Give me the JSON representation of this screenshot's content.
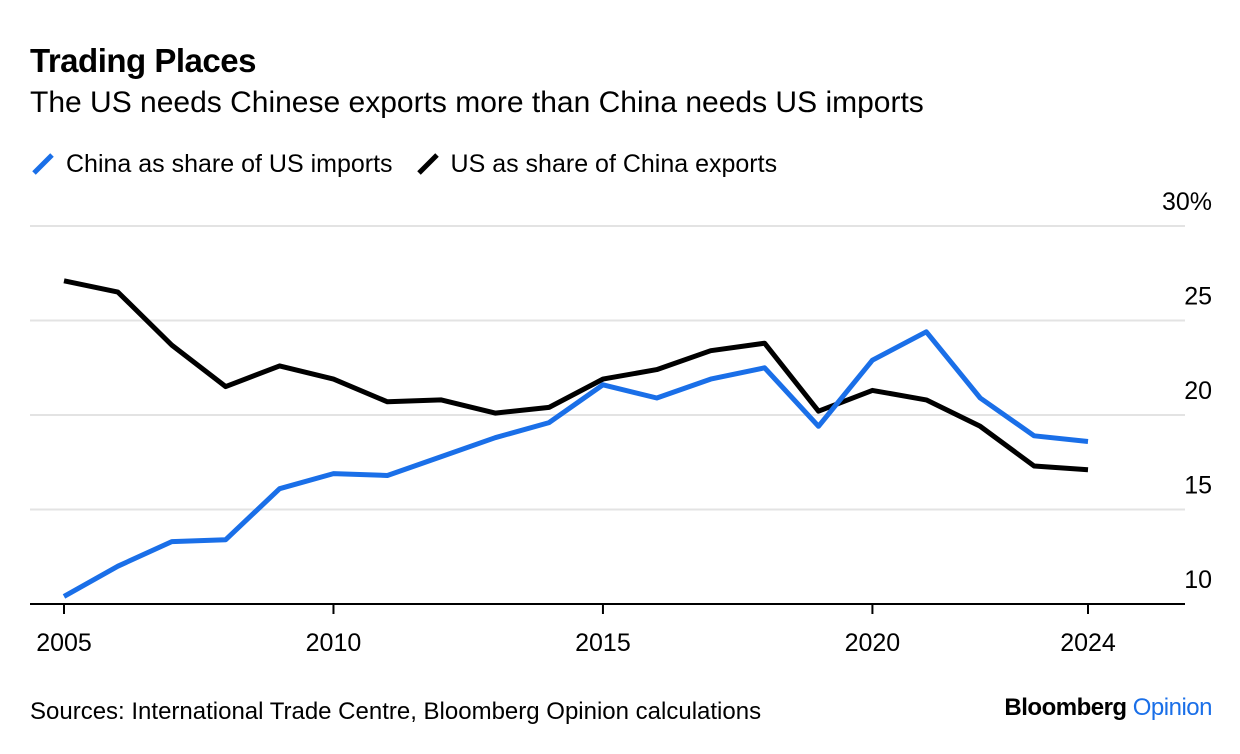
{
  "title": "Trading Places",
  "subtitle": "The US needs Chinese exports more than China needs US imports",
  "source": "Sources: International Trade Centre, Bloomberg Opinion calculations",
  "brand": {
    "name": "Bloomberg",
    "suffix": "Opinion"
  },
  "chart_data": {
    "type": "line",
    "title": "Trading Places",
    "subtitle": "The US needs Chinese exports more than China needs US imports",
    "x": [
      2005,
      2006,
      2007,
      2008,
      2009,
      2010,
      2011,
      2012,
      2013,
      2014,
      2015,
      2016,
      2017,
      2018,
      2019,
      2020,
      2021,
      2022,
      2023,
      2024
    ],
    "series": [
      {
        "name": "China as share of US imports",
        "color": "#1a6fe8",
        "values": [
          10.4,
          12.0,
          13.3,
          13.4,
          16.1,
          16.9,
          16.8,
          17.8,
          18.8,
          19.6,
          21.6,
          20.9,
          21.9,
          22.5,
          19.4,
          22.9,
          24.4,
          20.9,
          18.9,
          18.6
        ]
      },
      {
        "name": "US as share of China exports",
        "color": "#000000",
        "values": [
          27.1,
          26.5,
          23.7,
          21.5,
          22.6,
          21.9,
          20.7,
          20.8,
          20.1,
          20.4,
          21.9,
          22.4,
          23.4,
          23.8,
          20.2,
          21.3,
          20.8,
          19.4,
          17.3,
          17.1
        ]
      }
    ],
    "x_ticks": [
      "2005",
      "2010",
      "2015",
      "2020",
      "2024"
    ],
    "x_tick_values": [
      2005,
      2010,
      2015,
      2020,
      2024
    ],
    "y_ticks": [
      "10",
      "15",
      "20",
      "25",
      "30%"
    ],
    "y_tick_values": [
      10,
      15,
      20,
      25,
      30
    ],
    "ylim": [
      9.5,
      30
    ],
    "xlim": [
      2004.4,
      2025.8
    ],
    "grid": true,
    "legend_position": "top-left",
    "y_axis_side": "right"
  }
}
